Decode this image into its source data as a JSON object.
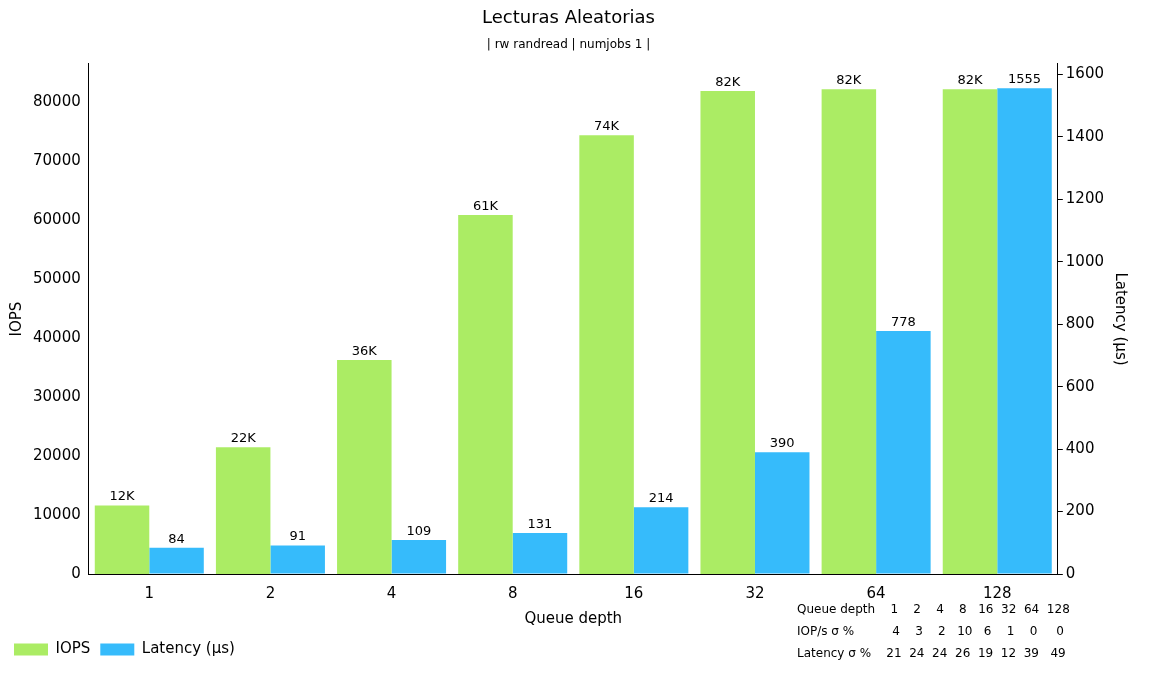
{
  "chart_data": {
    "type": "bar",
    "title": "Lecturas Aleatorias",
    "subtitle": "| rw randread | numjobs 1 |",
    "xlabel": "Queue depth",
    "ylabel": "IOPS",
    "y2label": "Latency (µs)",
    "categories": [
      "1",
      "2",
      "4",
      "8",
      "16",
      "32",
      "64",
      "128"
    ],
    "series": [
      {
        "name": "IOPS",
        "color": "#abec64",
        "values": [
          11600,
          21500,
          36300,
          60900,
          74400,
          81900,
          82200,
          82200
        ],
        "value_labels": [
          "12K",
          "22K",
          "36K",
          "61K",
          "74K",
          "82K",
          "82K",
          "82K"
        ]
      },
      {
        "name": "Latency (µs)",
        "color": "#36bbfb",
        "axis": "y2",
        "values": [
          84,
          91,
          109,
          131,
          214,
          390,
          778,
          1555
        ],
        "value_labels": [
          "84",
          "91",
          "109",
          "131",
          "214",
          "390",
          "778",
          "1555"
        ]
      }
    ],
    "ylim": [
      0,
      86500
    ],
    "yticks": [
      0,
      10000,
      20000,
      30000,
      40000,
      50000,
      60000,
      70000,
      80000
    ],
    "y2lim": [
      0,
      1633
    ],
    "y2ticks": [
      0,
      200,
      400,
      600,
      800,
      1000,
      1200,
      1400,
      1600
    ],
    "grid": false,
    "legend": "bottom left",
    "annotations": [
      "Queue depth    1    2    4    8   16  32  64  128",
      "IOP/s σ %          4    3    2   10   6    1    0     0",
      "Latency σ %    21  24  24  26  19  12  39   49"
    ]
  }
}
